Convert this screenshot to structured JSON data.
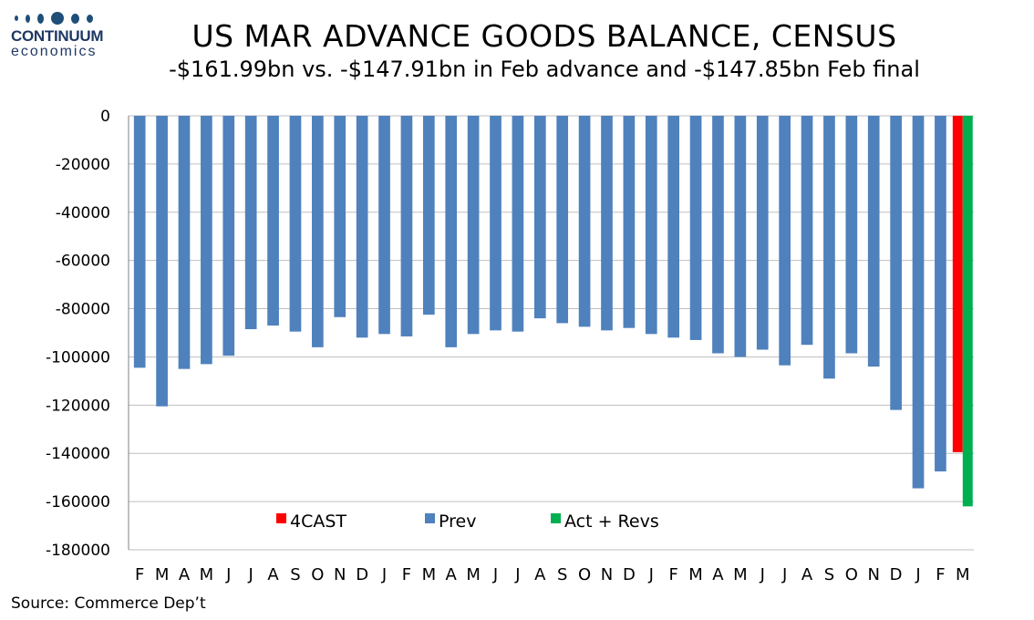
{
  "logo": {
    "name": "CONTINUUM",
    "sub": "economics"
  },
  "header": {
    "title": "US MAR ADVANCE GOODS BALANCE, CENSUS",
    "subtitle": "-$161.99bn vs. -$147.91bn in Feb advance and -$147.85bn Feb final"
  },
  "source": "Source: Commerce Dep’t",
  "colors": {
    "prev": "#4f81bd",
    "forecast": "#ff0000",
    "actual": "#00b050",
    "grid": "#bfbfbf"
  },
  "chart_data": {
    "type": "bar",
    "ylim": [
      -180000,
      0
    ],
    "yticks": [
      0,
      -20000,
      -40000,
      -60000,
      -80000,
      -100000,
      -120000,
      -140000,
      -160000,
      -180000
    ],
    "grid": true,
    "legend_placement": "bottom-center",
    "categories": [
      "F",
      "M",
      "A",
      "M",
      "J",
      "J",
      "A",
      "S",
      "O",
      "N",
      "D",
      "J",
      "F",
      "M",
      "A",
      "M",
      "J",
      "J",
      "A",
      "S",
      "O",
      "N",
      "D",
      "J",
      "F",
      "M",
      "A",
      "M",
      "J",
      "J",
      "A",
      "S",
      "O",
      "N",
      "D",
      "J",
      "F",
      "M"
    ],
    "series": [
      {
        "name": "4CAST",
        "color": "#ff0000",
        "values": [
          null,
          null,
          null,
          null,
          null,
          null,
          null,
          null,
          null,
          null,
          null,
          null,
          null,
          null,
          null,
          null,
          null,
          null,
          null,
          null,
          null,
          null,
          null,
          null,
          null,
          null,
          null,
          null,
          null,
          null,
          null,
          null,
          null,
          null,
          null,
          null,
          null,
          -139500
        ]
      },
      {
        "name": "Prev",
        "color": "#4f81bd",
        "values": [
          -104500,
          -120500,
          -105000,
          -103000,
          -99500,
          -88500,
          -87000,
          -89500,
          -96000,
          -83500,
          -92000,
          -90500,
          -91500,
          -82500,
          -96000,
          -90500,
          -89000,
          -89500,
          -84000,
          -86000,
          -87500,
          -89000,
          -88000,
          -90500,
          -92000,
          -93000,
          -98500,
          -100000,
          -97000,
          -103500,
          -95000,
          -109000,
          -98500,
          -104000,
          -122000,
          -154500,
          -147500,
          null
        ]
      },
      {
        "name": "Act + Revs",
        "color": "#00b050",
        "values": [
          null,
          null,
          null,
          null,
          null,
          null,
          null,
          null,
          null,
          null,
          null,
          null,
          null,
          null,
          null,
          null,
          null,
          null,
          null,
          null,
          null,
          null,
          null,
          null,
          null,
          null,
          null,
          null,
          null,
          null,
          null,
          null,
          null,
          null,
          null,
          null,
          null,
          -161990
        ]
      }
    ]
  }
}
